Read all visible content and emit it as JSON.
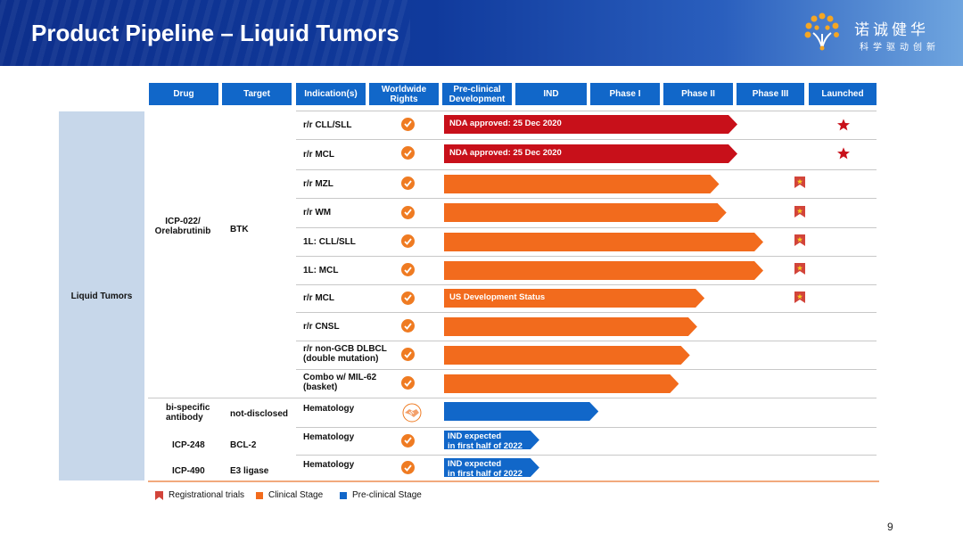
{
  "header": {
    "title": "Product Pipeline – Liquid Tumors",
    "logo_cn": "诺诚健华",
    "logo_sub": "科学驱动创新"
  },
  "columns": [
    "Drug",
    "Target",
    "Indication(s)",
    "Worldwide\nRights",
    "Pre-clinical\nDevelopment",
    "IND",
    "Phase I",
    "Phase II",
    "Phase III",
    "Launched"
  ],
  "category": "Liquid Tumors",
  "drugs": [
    {
      "name": "ICP-022/\nOrelabrutinib",
      "target": "BTK"
    },
    {
      "name": "bi-specific\nantibody",
      "target": "not-disclosed"
    },
    {
      "name": "ICP-248",
      "target": "BCL-2"
    },
    {
      "name": "ICP-490",
      "target": "E3 ligase"
    }
  ],
  "rows": [
    {
      "indication": "r/r CLL/SLL",
      "rights": "check",
      "stage": "clinical",
      "label": "NDA approved: 25 Dec 2020",
      "color": "#c8101a",
      "progress_phase": 4.0,
      "marker": "star"
    },
    {
      "indication": "r/r MCL",
      "rights": "check",
      "stage": "clinical",
      "label": "NDA approved: 25 Dec 2020",
      "color": "#c8101a",
      "progress_phase": 4.0,
      "marker": "star"
    },
    {
      "indication": "r/r MZL",
      "rights": "check",
      "stage": "clinical",
      "label": "",
      "color": "#f26b1d",
      "progress_phase": 3.75,
      "marker": "flag"
    },
    {
      "indication": "r/r WM",
      "rights": "check",
      "stage": "clinical",
      "label": "",
      "color": "#f26b1d",
      "progress_phase": 3.85,
      "marker": "flag"
    },
    {
      "indication": "1L: CLL/SLL",
      "rights": "check",
      "stage": "clinical",
      "label": "",
      "color": "#f26b1d",
      "progress_phase": 4.35,
      "marker": "flag"
    },
    {
      "indication": "1L: MCL",
      "rights": "check",
      "stage": "clinical",
      "label": "",
      "color": "#f26b1d",
      "progress_phase": 4.35,
      "marker": "flag"
    },
    {
      "indication": "r/r MCL",
      "rights": "check",
      "stage": "clinical",
      "label": "US Development Status",
      "color": "#f26b1d",
      "progress_phase": 3.55,
      "marker": "flag"
    },
    {
      "indication": "r/r CNSL",
      "rights": "check",
      "stage": "clinical",
      "label": "",
      "color": "#f26b1d",
      "progress_phase": 3.45,
      "marker": ""
    },
    {
      "indication": "r/r non-GCB DLBCL\n(double mutation)",
      "rights": "check",
      "stage": "clinical",
      "label": "",
      "color": "#f26b1d",
      "progress_phase": 3.35,
      "marker": ""
    },
    {
      "indication": "Combo w/ MIL-62\n(basket)",
      "rights": "check",
      "stage": "clinical",
      "label": "",
      "color": "#f26b1d",
      "progress_phase": 3.2,
      "marker": ""
    },
    {
      "indication": "Hematology",
      "rights": "handshake",
      "stage": "preclinical",
      "label": "",
      "color": "#1167c9",
      "progress_phase": 2.1,
      "marker": ""
    },
    {
      "indication": "Hematology",
      "rights": "check",
      "stage": "preclinical",
      "label": "IND expected\nin first half of 2022",
      "color": "#1167c9",
      "progress_phase": 1.3,
      "marker": ""
    },
    {
      "indication": "Hematology",
      "rights": "check",
      "stage": "preclinical",
      "label": "IND expected\nin first half of 2022",
      "color": "#1167c9",
      "progress_phase": 1.3,
      "marker": ""
    }
  ],
  "legend": {
    "registrational": "Registrational trials",
    "clinical": "Clinical Stage",
    "preclinical": "Pre-clinical Stage"
  },
  "colors": {
    "header_blue": "#1167c9",
    "clinical": "#f26b1d",
    "approved": "#c8101a",
    "preclinical": "#1167c9",
    "panel": "#c7d7ea"
  },
  "page_number": "9"
}
